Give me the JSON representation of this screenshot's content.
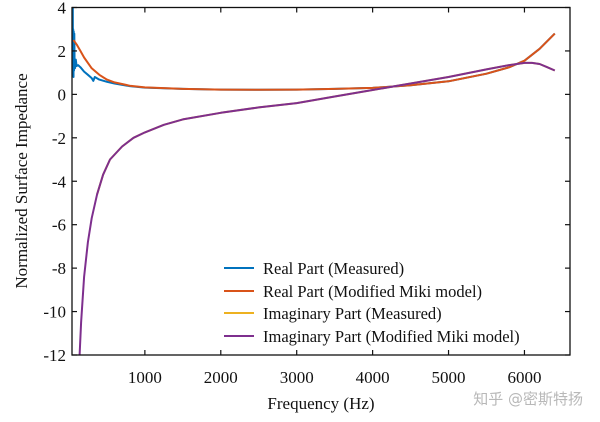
{
  "chart_data": {
    "type": "line",
    "title": "",
    "xlabel": "Frequency (Hz)",
    "ylabel": "Normalized Surface Impedance",
    "xlim": [
      40,
      6600
    ],
    "ylim": [
      -12,
      4
    ],
    "xticks": [
      1000,
      2000,
      3000,
      4000,
      5000,
      6000
    ],
    "yticks": [
      4,
      2,
      0,
      -2,
      -4,
      -6,
      -8,
      -10,
      -12
    ],
    "grid": false,
    "box": true,
    "legend_position": "bottom-right",
    "series": [
      {
        "name": "Real Part (Measured)",
        "color": "#0072BD",
        "x": [
          50,
          53,
          56,
          60,
          63,
          66,
          70,
          74,
          80,
          90,
          100,
          120,
          150,
          200,
          250,
          300,
          320,
          340,
          400,
          500,
          600,
          800,
          1000,
          1500,
          2000,
          2500,
          3000,
          3500,
          4000,
          4500,
          5000,
          5500,
          5800,
          6000,
          6200,
          6400
        ],
        "y": [
          4.0,
          1.0,
          3.0,
          0.8,
          2.9,
          1.1,
          2.8,
          1.4,
          1.2,
          1.6,
          1.3,
          1.35,
          1.25,
          1.05,
          0.9,
          0.75,
          0.62,
          0.8,
          0.68,
          0.58,
          0.5,
          0.38,
          0.31,
          0.25,
          0.22,
          0.21,
          0.22,
          0.25,
          0.3,
          0.42,
          0.6,
          0.95,
          1.25,
          1.55,
          2.1,
          2.8
        ]
      },
      {
        "name": "Real Part (Modified Miki model)",
        "color": "#D95319",
        "x": [
          60,
          100,
          150,
          200,
          300,
          400,
          500,
          600,
          800,
          1000,
          1500,
          2000,
          2500,
          3000,
          3500,
          4000,
          4500,
          5000,
          5500,
          5800,
          6000,
          6200,
          6400
        ],
        "y": [
          2.5,
          2.3,
          2.0,
          1.7,
          1.2,
          0.9,
          0.68,
          0.55,
          0.4,
          0.32,
          0.25,
          0.22,
          0.21,
          0.22,
          0.25,
          0.3,
          0.42,
          0.6,
          0.95,
          1.25,
          1.55,
          2.1,
          2.8
        ]
      },
      {
        "name": "Imaginary Part (Measured)",
        "color": "#EDB120",
        "x": [
          370,
          450,
          540,
          700,
          850,
          1000,
          1250,
          1500,
          2000,
          2500,
          3000,
          3500,
          4000,
          4500,
          5000,
          5500,
          5800,
          6000,
          6100,
          6200,
          6300,
          6400
        ],
        "y": [
          -4.6,
          -3.7,
          -3.0,
          -2.4,
          -2.0,
          -1.75,
          -1.4,
          -1.15,
          -0.85,
          -0.6,
          -0.4,
          -0.1,
          0.2,
          0.5,
          0.8,
          1.15,
          1.35,
          1.45,
          1.45,
          1.4,
          1.25,
          1.1
        ]
      },
      {
        "name": "Imaginary Part (Modified Miki model)",
        "color": "#7E2F8E",
        "x": [
          140,
          160,
          200,
          250,
          300,
          370,
          450,
          540,
          700,
          850,
          1000,
          1250,
          1500,
          2000,
          2500,
          3000,
          3500,
          4000,
          4500,
          5000,
          5500,
          5800,
          6000,
          6100,
          6200,
          6300,
          6400
        ],
        "y": [
          -12,
          -10.5,
          -8.4,
          -6.8,
          -5.7,
          -4.6,
          -3.7,
          -3.0,
          -2.4,
          -2.0,
          -1.75,
          -1.4,
          -1.15,
          -0.85,
          -0.6,
          -0.4,
          -0.1,
          0.2,
          0.5,
          0.8,
          1.15,
          1.35,
          1.45,
          1.45,
          1.4,
          1.25,
          1.1
        ]
      }
    ]
  },
  "watermark": "知乎 @密斯特扬"
}
